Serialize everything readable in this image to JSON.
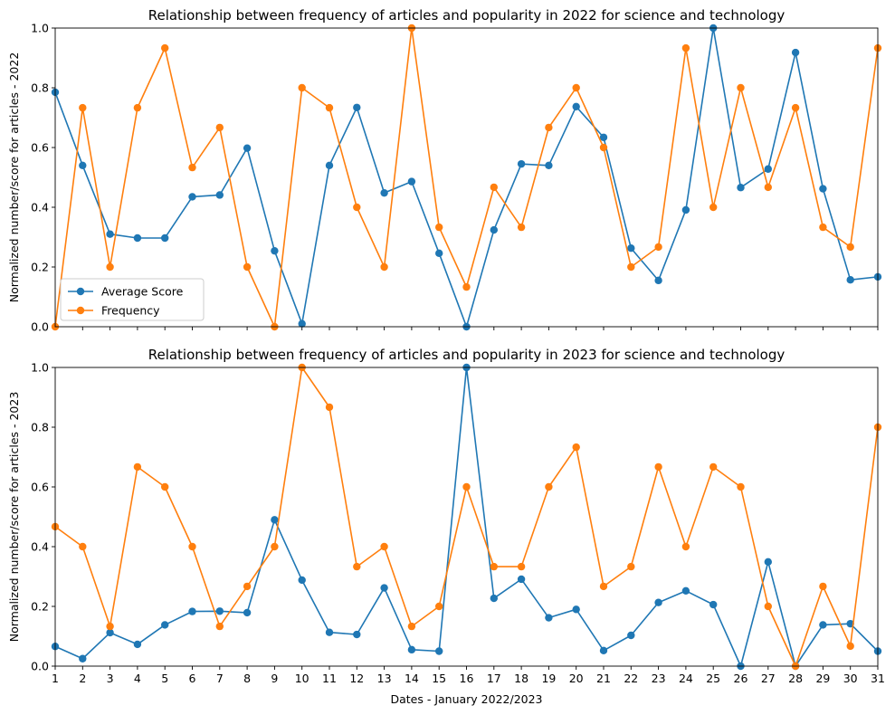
{
  "chart_data": [
    {
      "type": "line",
      "title": "Relationship between frequency of articles and popularity in 2022 for science and technology",
      "xlabel": "",
      "ylabel": "Normalized number/score for articles - 2022",
      "xlim": [
        1,
        31
      ],
      "ylim": [
        0,
        1
      ],
      "x": [
        1,
        2,
        3,
        4,
        5,
        6,
        7,
        8,
        9,
        10,
        11,
        12,
        13,
        14,
        15,
        16,
        17,
        18,
        19,
        20,
        21,
        22,
        23,
        24,
        25,
        26,
        27,
        28,
        29,
        30,
        31
      ],
      "x_tick_labels_visible": false,
      "yticks": [
        "0.0",
        "0.2",
        "0.4",
        "0.6",
        "0.8",
        "1.0"
      ],
      "legend": "lower-left",
      "grid": false,
      "series": [
        {
          "name": "Average Score",
          "color": "#1f77b4",
          "values": [
            0.785,
            0.54,
            0.31,
            0.297,
            0.297,
            0.435,
            0.441,
            0.598,
            0.254,
            0.01,
            0.54,
            0.734,
            0.448,
            0.486,
            0.246,
            0.0,
            0.324,
            0.545,
            0.54,
            0.737,
            0.634,
            0.263,
            0.155,
            0.391,
            1.0,
            0.466,
            0.528,
            0.918,
            0.462,
            0.157,
            0.167
          ]
        },
        {
          "name": "Frequency",
          "color": "#ff7f0e",
          "values": [
            0.0,
            0.733,
            0.2,
            0.733,
            0.933,
            0.533,
            0.667,
            0.2,
            0.0,
            0.8,
            0.733,
            0.4,
            0.2,
            1.0,
            0.333,
            0.133,
            0.467,
            0.333,
            0.667,
            0.8,
            0.6,
            0.2,
            0.267,
            0.933,
            0.4,
            0.8,
            0.467,
            0.733,
            0.333,
            0.267,
            0.933
          ]
        }
      ]
    },
    {
      "type": "line",
      "title": "Relationship between frequency of articles and popularity in 2023 for science and technology",
      "xlabel": "Dates - January 2022/2023",
      "ylabel": "Normalized number/score for articles - 2023",
      "xlim": [
        1,
        31
      ],
      "ylim": [
        0,
        1
      ],
      "x": [
        1,
        2,
        3,
        4,
        5,
        6,
        7,
        8,
        9,
        10,
        11,
        12,
        13,
        14,
        15,
        16,
        17,
        18,
        19,
        20,
        21,
        22,
        23,
        24,
        25,
        26,
        27,
        28,
        29,
        30,
        31
      ],
      "x_tick_labels_visible": true,
      "yticks": [
        "0.0",
        "0.2",
        "0.4",
        "0.6",
        "0.8",
        "1.0"
      ],
      "legend": "none",
      "grid": false,
      "series": [
        {
          "name": "Average Score",
          "color": "#1f77b4",
          "values": [
            0.066,
            0.025,
            0.112,
            0.073,
            0.138,
            0.183,
            0.184,
            0.179,
            0.49,
            0.288,
            0.113,
            0.106,
            0.262,
            0.055,
            0.05,
            1.0,
            0.227,
            0.291,
            0.162,
            0.19,
            0.052,
            0.103,
            0.213,
            0.252,
            0.206,
            0.0,
            0.349,
            0.0,
            0.138,
            0.142,
            0.05
          ]
        },
        {
          "name": "Frequency",
          "color": "#ff7f0e",
          "values": [
            0.467,
            0.4,
            0.133,
            0.667,
            0.6,
            0.4,
            0.133,
            0.267,
            0.4,
            1.0,
            0.867,
            0.333,
            0.4,
            0.133,
            0.2,
            0.6,
            0.333,
            0.333,
            0.6,
            0.733,
            0.267,
            0.333,
            0.667,
            0.4,
            0.667,
            0.6,
            0.2,
            0.0,
            0.267,
            0.067,
            0.8
          ]
        }
      ]
    }
  ]
}
